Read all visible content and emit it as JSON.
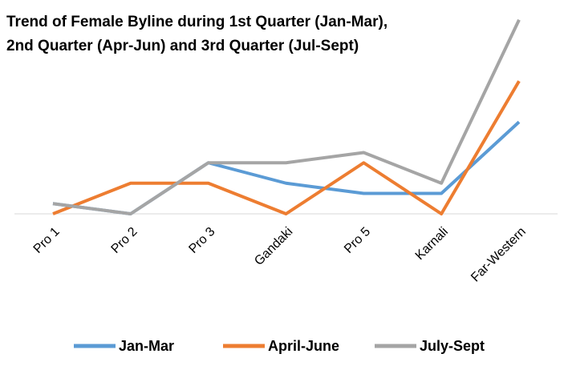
{
  "chart_data": {
    "type": "line",
    "title": [
      "Trend of Female Byline during 1st Quarter (Jan-Mar),",
      "2nd Quarter (Apr-Jun) and 3rd Quarter (Jul-Sept)"
    ],
    "categories": [
      "Pro 1",
      "Pro 2",
      "Pro 3",
      "Gandaki",
      "Pro 5",
      "Karnali",
      "Far-Western"
    ],
    "series": [
      {
        "name": "Jan-Mar",
        "color": "#5b9bd5",
        "values": [
          1,
          0,
          5,
          3,
          2,
          2,
          9
        ]
      },
      {
        "name": "April-June",
        "color": "#ed7d31",
        "values": [
          0,
          3,
          3,
          0,
          5,
          0,
          13
        ]
      },
      {
        "name": "July-Sept",
        "color": "#a5a5a5",
        "values": [
          1,
          0,
          5,
          5,
          6,
          3,
          19
        ]
      }
    ],
    "ylim": [
      0,
      20
    ],
    "legend": "bottom"
  }
}
